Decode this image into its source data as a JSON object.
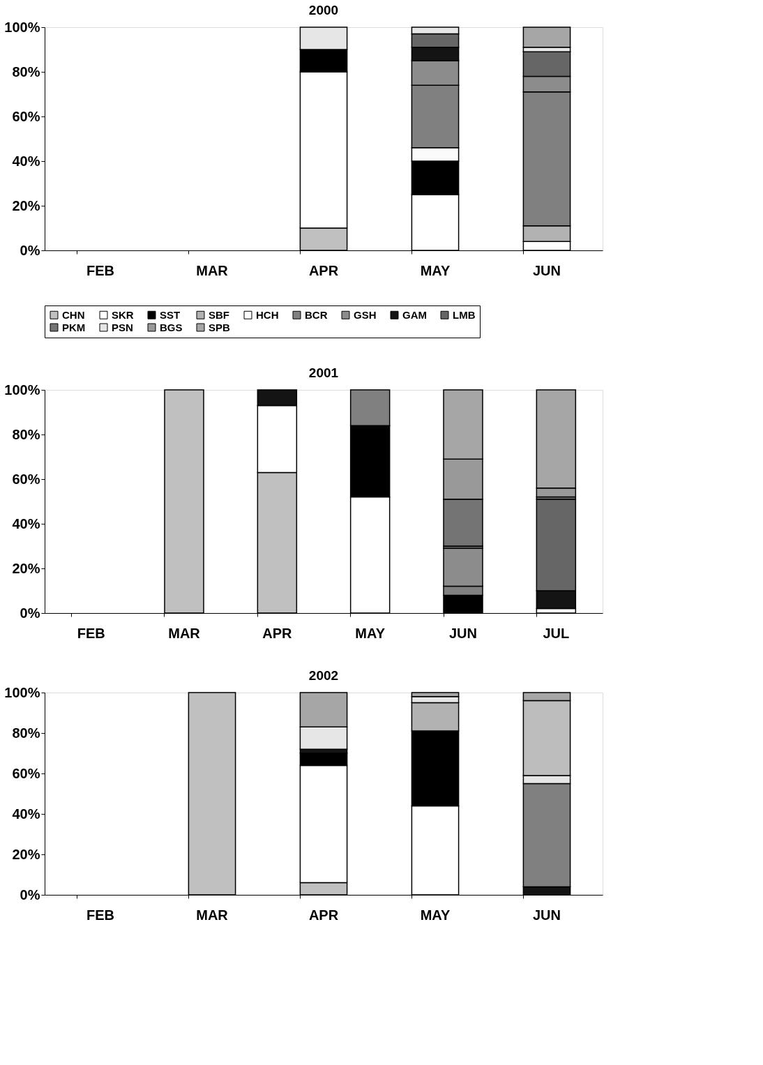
{
  "chart_data": [
    {
      "type": "bar",
      "title": "2000",
      "stacked": true,
      "legend": "bottom",
      "grid": false,
      "categories": [
        "FEB",
        "MAR",
        "APR",
        "MAY",
        "JUN"
      ],
      "ylim": [
        0,
        100
      ],
      "yticks": [
        {
          "value": 0,
          "label": "0%"
        },
        {
          "value": 20,
          "label": "20%"
        },
        {
          "value": 40,
          "label": "40%"
        },
        {
          "value": 60,
          "label": "60%"
        },
        {
          "value": 80,
          "label": "80%"
        },
        {
          "value": 100,
          "label": "100%"
        }
      ],
      "series": [
        {
          "name": "CHN",
          "color": "#c0c0c0",
          "values": [
            null,
            null,
            10,
            null,
            null
          ]
        },
        {
          "name": "SKR",
          "color": "#ffffff",
          "values": [
            null,
            null,
            70,
            25,
            4
          ]
        },
        {
          "name": "SST",
          "color": "#000000",
          "values": [
            null,
            null,
            10,
            15,
            null
          ]
        },
        {
          "name": "SBF",
          "color": "#b2b2b2",
          "values": [
            null,
            null,
            null,
            null,
            7
          ]
        },
        {
          "name": "HCH",
          "color": "#fafafa",
          "values": [
            null,
            null,
            null,
            6,
            null
          ]
        },
        {
          "name": "BCR",
          "color": "#808080",
          "values": [
            null,
            null,
            null,
            28,
            60
          ]
        },
        {
          "name": "GSH",
          "color": "#8c8c8c",
          "values": [
            null,
            null,
            null,
            11,
            7
          ]
        },
        {
          "name": "GAM",
          "color": "#141414",
          "values": [
            null,
            null,
            null,
            6,
            null
          ]
        },
        {
          "name": "LMB",
          "color": "#666666",
          "values": [
            null,
            null,
            null,
            6,
            11
          ]
        },
        {
          "name": "PKM",
          "color": "#747474",
          "values": [
            null,
            null,
            null,
            null,
            null
          ]
        },
        {
          "name": "PSN",
          "color": "#e6e6e6",
          "values": [
            null,
            null,
            10,
            3,
            2
          ]
        },
        {
          "name": "BGS",
          "color": "#999999",
          "values": [
            null,
            null,
            null,
            null,
            null
          ]
        },
        {
          "name": "SPB",
          "color": "#a6a6a6",
          "values": [
            null,
            null,
            null,
            null,
            9
          ]
        }
      ]
    },
    {
      "type": "bar",
      "title": "2001",
      "stacked": true,
      "grid": false,
      "categories": [
        "FEB",
        "MAR",
        "APR",
        "MAY",
        "JUN",
        "JUL"
      ],
      "ylim": [
        0,
        100
      ],
      "yticks": [
        {
          "value": 0,
          "label": "0%"
        },
        {
          "value": 20,
          "label": "20%"
        },
        {
          "value": 40,
          "label": "40%"
        },
        {
          "value": 60,
          "label": "60%"
        },
        {
          "value": 80,
          "label": "80%"
        },
        {
          "value": 100,
          "label": "100%"
        }
      ],
      "series": [
        {
          "color": "#c0c0c0",
          "values": [
            null,
            100,
            63,
            null,
            null,
            null
          ]
        },
        {
          "color": "#ffffff",
          "values": [
            null,
            null,
            30,
            52,
            null,
            2
          ]
        },
        {
          "color": "#000000",
          "values": [
            null,
            null,
            null,
            32,
            8,
            null
          ]
        },
        {
          "color": "#808080",
          "values": [
            null,
            null,
            null,
            16,
            4,
            null
          ]
        },
        {
          "color": "#8c8c8c",
          "values": [
            null,
            null,
            null,
            null,
            17,
            null
          ]
        },
        {
          "color": "#141414",
          "values": [
            null,
            null,
            7,
            null,
            null,
            8
          ]
        },
        {
          "color": "#666666",
          "values": [
            null,
            null,
            null,
            null,
            1,
            41
          ]
        },
        {
          "color": "#747474",
          "values": [
            null,
            null,
            null,
            null,
            21,
            1
          ]
        },
        {
          "color": "#999999",
          "values": [
            null,
            null,
            null,
            null,
            18,
            4
          ]
        },
        {
          "color": "#a6a6a6",
          "values": [
            null,
            null,
            null,
            null,
            31,
            44
          ]
        }
      ]
    },
    {
      "type": "bar",
      "title": "2002",
      "stacked": true,
      "grid": false,
      "categories": [
        "FEB",
        "MAR",
        "APR",
        "MAY",
        "JUN"
      ],
      "ylim": [
        0,
        100
      ],
      "yticks": [
        {
          "value": 0,
          "label": "0%"
        },
        {
          "value": 20,
          "label": "20%"
        },
        {
          "value": 40,
          "label": "40%"
        },
        {
          "value": 60,
          "label": "60%"
        },
        {
          "value": 80,
          "label": "80%"
        },
        {
          "value": 100,
          "label": "100%"
        }
      ],
      "series": [
        {
          "color": "#c0c0c0",
          "values": [
            null,
            100,
            6,
            null,
            null
          ]
        },
        {
          "color": "#ffffff",
          "values": [
            null,
            null,
            58,
            44,
            null
          ]
        },
        {
          "color": "#000000",
          "values": [
            null,
            null,
            6,
            37,
            null
          ]
        },
        {
          "color": "#b2b2b2",
          "values": [
            null,
            null,
            null,
            14,
            null
          ]
        },
        {
          "color": "#141414",
          "values": [
            null,
            null,
            2,
            null,
            4
          ]
        },
        {
          "color": "#808080",
          "values": [
            null,
            null,
            null,
            null,
            51
          ]
        },
        {
          "color": "#e6e6e6",
          "values": [
            null,
            null,
            11,
            3,
            4
          ]
        },
        {
          "color": "#bdbdbd",
          "values": [
            null,
            null,
            null,
            null,
            37
          ]
        },
        {
          "color": "#a6a6a6",
          "values": [
            null,
            null,
            17,
            2,
            4
          ]
        }
      ]
    }
  ]
}
